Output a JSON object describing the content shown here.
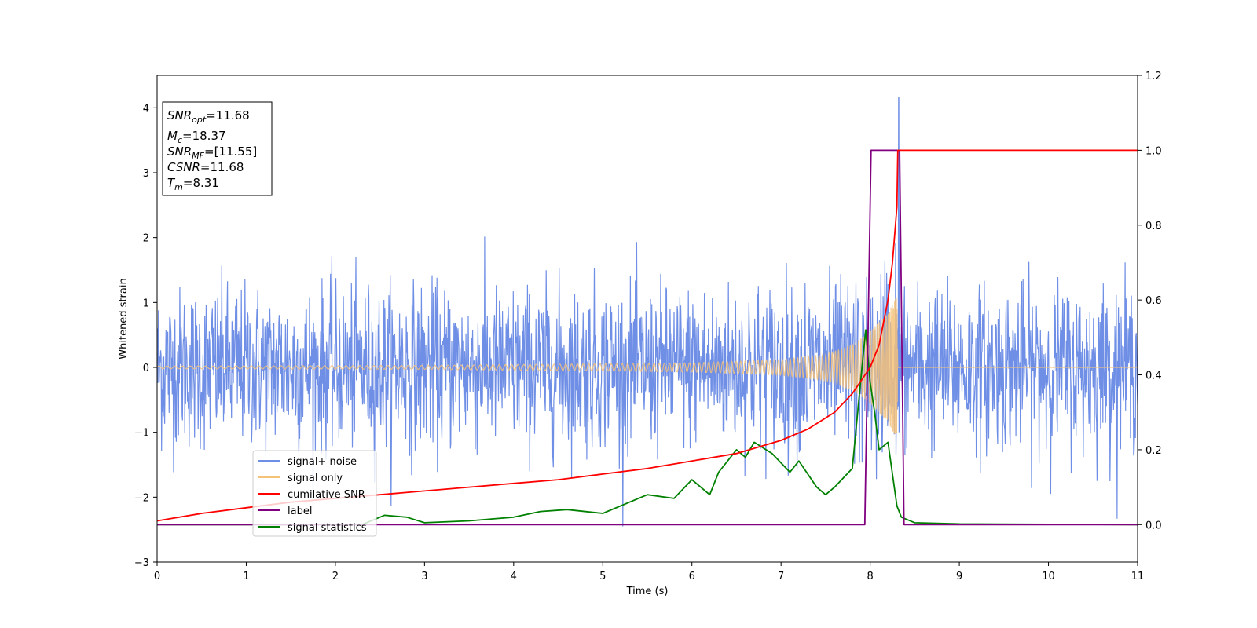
{
  "chart_data": {
    "type": "line",
    "xlabel": "Time (s)",
    "ylabel": "Whitened strain",
    "xlim": [
      0,
      11
    ],
    "ylim_left": [
      -3,
      4.5
    ],
    "ylim_right": [
      -0.1,
      1.2
    ],
    "x_ticks": [
      "0",
      "1",
      "2",
      "3",
      "4",
      "5",
      "6",
      "7",
      "8",
      "9",
      "10",
      "11"
    ],
    "y_ticks_left": [
      "−3",
      "−2",
      "−1",
      "0",
      "1",
      "2",
      "3",
      "4"
    ],
    "y_ticks_right": [
      "0.0",
      "0.2",
      "0.4",
      "0.6",
      "0.8",
      "1.0",
      "1.2"
    ],
    "legend": {
      "position": "lower-left",
      "entries": [
        {
          "label": "signal+ noise",
          "color": "#6f8fe6"
        },
        {
          "label": "signal only",
          "color": "#f5c27a"
        },
        {
          "label": "cumilative SNR",
          "color": "#ff0000"
        },
        {
          "label": "label",
          "color": "#800080"
        },
        {
          "label": "signal statistics",
          "color": "#008000"
        }
      ]
    },
    "info_box": {
      "position": "top-left",
      "lines": [
        {
          "main": "SNR",
          "sub": "opt",
          "value": "=11.68"
        },
        {
          "main": "M",
          "sub": "c",
          "value": "=18.37"
        },
        {
          "main": "SNR",
          "sub": "MF",
          "value": "=[11.55]"
        },
        {
          "main": "CSNR",
          "sub": "",
          "value": "=11.68"
        },
        {
          "main": "T",
          "sub": "m",
          "value": "=8.31"
        }
      ]
    },
    "series": [
      {
        "name": "signal+ noise",
        "axis": "left",
        "color": "#6f8fe6",
        "description_kind": "noise",
        "envelope_typical": 1.5,
        "max_peak": [
          8.32,
          4.17
        ],
        "x_range": [
          0,
          11
        ]
      },
      {
        "name": "signal only",
        "axis": "left",
        "color": "#f5c27a",
        "chirp_amplitude": [
          [
            0,
            0.02
          ],
          [
            3,
            0.03
          ],
          [
            6,
            0.07
          ],
          [
            7,
            0.12
          ],
          [
            7.5,
            0.2
          ],
          [
            7.8,
            0.35
          ],
          [
            8.0,
            0.55
          ],
          [
            8.2,
            0.85
          ],
          [
            8.3,
            1.1
          ],
          [
            8.31,
            0
          ]
        ],
        "x_range": [
          0,
          11
        ]
      },
      {
        "name": "cumilative SNR",
        "axis": "right",
        "color": "#ff0000",
        "x": [
          0,
          0.5,
          1,
          1.5,
          2,
          2.5,
          3,
          3.5,
          4,
          4.5,
          5,
          5.5,
          6,
          6.5,
          7,
          7.3,
          7.6,
          7.8,
          8.0,
          8.1,
          8.2,
          8.25,
          8.3,
          8.31,
          11
        ],
        "y": [
          0.01,
          0.03,
          0.045,
          0.06,
          0.07,
          0.08,
          0.09,
          0.1,
          0.11,
          0.12,
          0.135,
          0.15,
          0.17,
          0.19,
          0.225,
          0.255,
          0.3,
          0.35,
          0.42,
          0.48,
          0.6,
          0.7,
          0.85,
          1.0,
          1.0
        ]
      },
      {
        "name": "label",
        "axis": "right",
        "color": "#800080",
        "x": [
          0,
          7.94,
          8.01,
          8.33,
          8.38,
          11
        ],
        "y": [
          0,
          0,
          1,
          1,
          0,
          0
        ]
      },
      {
        "name": "signal statistics",
        "axis": "right",
        "color": "#008000",
        "x": [
          0,
          2.3,
          2.55,
          2.8,
          3.0,
          3.5,
          4.0,
          4.3,
          4.6,
          5.0,
          5.3,
          5.5,
          5.8,
          6.0,
          6.2,
          6.3,
          6.5,
          6.6,
          6.7,
          6.9,
          7.1,
          7.2,
          7.4,
          7.5,
          7.6,
          7.8,
          7.9,
          7.95,
          8.0,
          8.05,
          8.1,
          8.2,
          8.3,
          8.35,
          8.5,
          9.0,
          11
        ],
        "y": [
          0.0,
          0.0,
          0.025,
          0.02,
          0.005,
          0.01,
          0.02,
          0.035,
          0.04,
          0.03,
          0.06,
          0.08,
          0.07,
          0.12,
          0.08,
          0.14,
          0.2,
          0.18,
          0.22,
          0.19,
          0.14,
          0.17,
          0.1,
          0.08,
          0.1,
          0.15,
          0.4,
          0.52,
          0.38,
          0.3,
          0.2,
          0.22,
          0.05,
          0.02,
          0.005,
          0.002,
          0.0
        ]
      }
    ]
  }
}
